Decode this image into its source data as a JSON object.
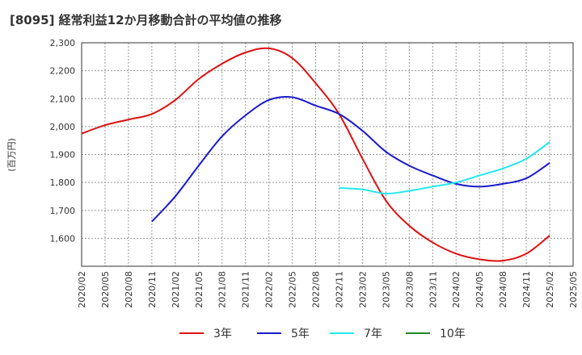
{
  "chart_data": {
    "type": "line",
    "title": "[8095]  経常利益12か月移動合計の平均値の推移",
    "ylabel": "(百万円)",
    "xlabel": "",
    "ylim": [
      1500,
      2300
    ],
    "y_ticks": [
      1600,
      1700,
      1800,
      1900,
      2000,
      2100,
      2200,
      2300
    ],
    "y_tick_labels": [
      "1,600",
      "1,700",
      "1,800",
      "1,900",
      "2,000",
      "2,100",
      "2,200",
      "2,300"
    ],
    "x_tick_labels": [
      "2020/02",
      "2020/05",
      "2020/08",
      "2020/11",
      "2021/02",
      "2021/05",
      "2021/08",
      "2021/11",
      "2022/02",
      "2022/05",
      "2022/08",
      "2022/11",
      "2023/02",
      "2023/05",
      "2023/08",
      "2023/11",
      "2024/02",
      "2024/05",
      "2024/08",
      "2024/11",
      "2025/02",
      "2025/05"
    ],
    "grid": true,
    "legend_position": "bottom",
    "series": [
      {
        "name": "3年",
        "color": "#dd1111",
        "points": [
          [
            "2020/02",
            1975
          ],
          [
            "2020/05",
            2005
          ],
          [
            "2020/08",
            2025
          ],
          [
            "2020/11",
            2045
          ],
          [
            "2021/02",
            2095
          ],
          [
            "2021/05",
            2170
          ],
          [
            "2021/08",
            2225
          ],
          [
            "2021/11",
            2265
          ],
          [
            "2022/02",
            2280
          ],
          [
            "2022/05",
            2245
          ],
          [
            "2022/08",
            2155
          ],
          [
            "2022/11",
            2045
          ],
          [
            "2023/02",
            1885
          ],
          [
            "2023/05",
            1735
          ],
          [
            "2023/08",
            1645
          ],
          [
            "2023/11",
            1585
          ],
          [
            "2024/02",
            1545
          ],
          [
            "2024/05",
            1525
          ],
          [
            "2024/08",
            1520
          ],
          [
            "2024/11",
            1545
          ],
          [
            "2025/02",
            1610
          ]
        ]
      },
      {
        "name": "5年",
        "color": "#1a1acc",
        "points": [
          [
            "2020/11",
            1660
          ],
          [
            "2021/02",
            1750
          ],
          [
            "2021/05",
            1860
          ],
          [
            "2021/08",
            1965
          ],
          [
            "2021/11",
            2040
          ],
          [
            "2022/02",
            2095
          ],
          [
            "2022/05",
            2105
          ],
          [
            "2022/08",
            2075
          ],
          [
            "2022/11",
            2045
          ],
          [
            "2023/02",
            1985
          ],
          [
            "2023/05",
            1910
          ],
          [
            "2023/08",
            1860
          ],
          [
            "2023/11",
            1825
          ],
          [
            "2024/02",
            1795
          ],
          [
            "2024/05",
            1785
          ],
          [
            "2024/08",
            1795
          ],
          [
            "2024/11",
            1815
          ],
          [
            "2025/02",
            1870
          ]
        ]
      },
      {
        "name": "7年",
        "color": "#22e8f0",
        "points": [
          [
            "2022/11",
            1780
          ],
          [
            "2023/02",
            1775
          ],
          [
            "2023/05",
            1760
          ],
          [
            "2023/08",
            1770
          ],
          [
            "2023/11",
            1785
          ],
          [
            "2024/02",
            1800
          ],
          [
            "2024/05",
            1825
          ],
          [
            "2024/08",
            1850
          ],
          [
            "2024/11",
            1885
          ],
          [
            "2025/02",
            1945
          ]
        ]
      },
      {
        "name": "10年",
        "color": "#228822",
        "points": []
      }
    ]
  }
}
